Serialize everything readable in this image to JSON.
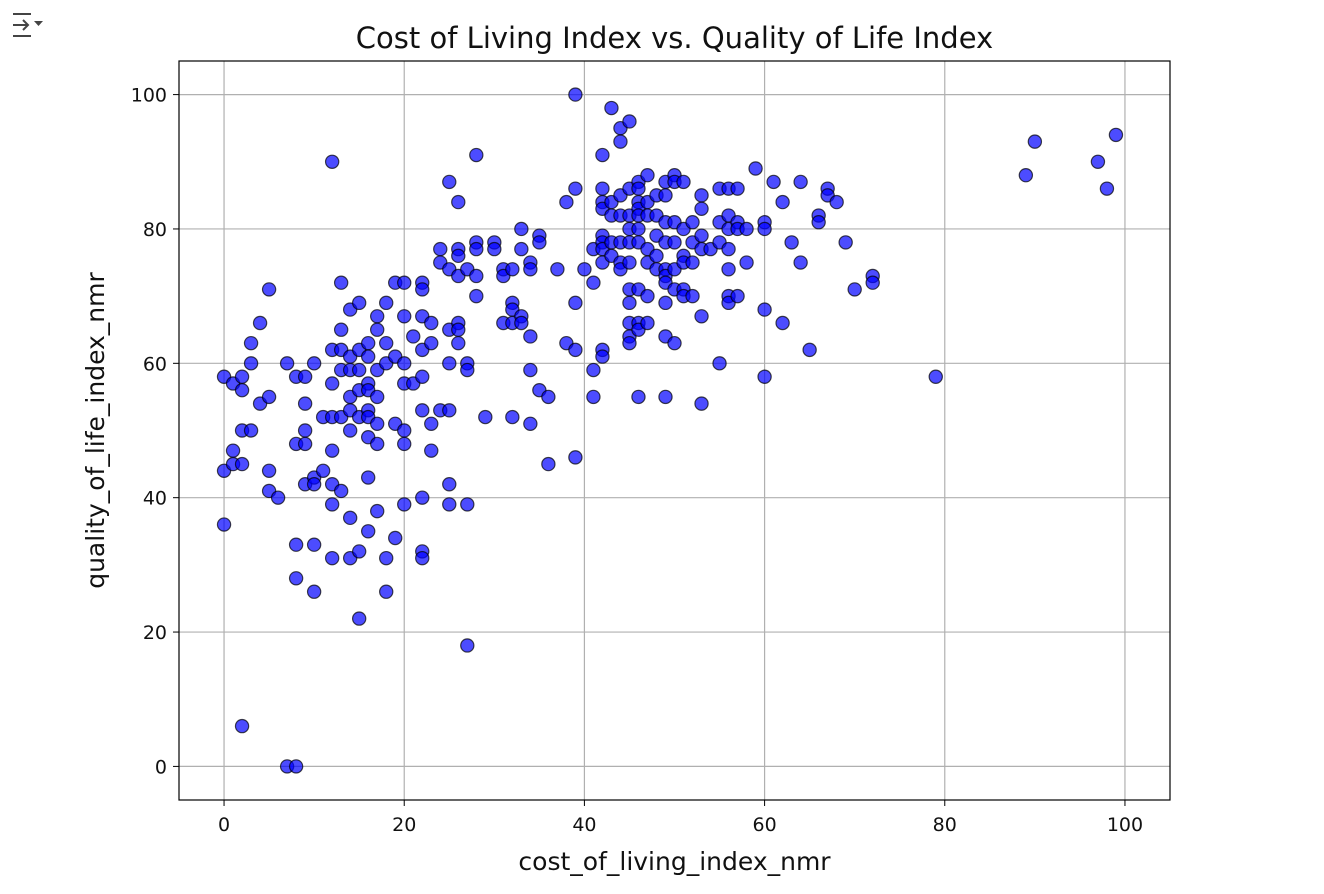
{
  "output_toggle": {
    "icon": "output-collapse-icon"
  },
  "chart_data": {
    "type": "scatter",
    "title": "Cost of Living Index vs. Quality of Life Index",
    "xlabel": "cost_of_living_index_nmr",
    "ylabel": "quality_of_life_index_nmr",
    "xlim": [
      -5,
      105
    ],
    "ylim": [
      -5,
      105
    ],
    "xticks": [
      0,
      20,
      40,
      60,
      80,
      100
    ],
    "yticks": [
      0,
      20,
      40,
      60,
      80,
      100
    ],
    "grid": true,
    "marker_color": "#0000ff",
    "marker_edge": "#000000",
    "points": [
      [
        0,
        58
      ],
      [
        0,
        44
      ],
      [
        0,
        36
      ],
      [
        1,
        57
      ],
      [
        1,
        47
      ],
      [
        1,
        45
      ],
      [
        2,
        58
      ],
      [
        2,
        56
      ],
      [
        2,
        50
      ],
      [
        2,
        45
      ],
      [
        2,
        6
      ],
      [
        3,
        63
      ],
      [
        3,
        60
      ],
      [
        3,
        50
      ],
      [
        4,
        66
      ],
      [
        4,
        54
      ],
      [
        5,
        71
      ],
      [
        5,
        55
      ],
      [
        5,
        44
      ],
      [
        5,
        41
      ],
      [
        6,
        40
      ],
      [
        7,
        60
      ],
      [
        7,
        0
      ],
      [
        8,
        58
      ],
      [
        8,
        48
      ],
      [
        8,
        33
      ],
      [
        8,
        28
      ],
      [
        8,
        0
      ],
      [
        9,
        58
      ],
      [
        9,
        54
      ],
      [
        9,
        50
      ],
      [
        9,
        48
      ],
      [
        9,
        42
      ],
      [
        10,
        60
      ],
      [
        10,
        43
      ],
      [
        10,
        42
      ],
      [
        10,
        33
      ],
      [
        10,
        26
      ],
      [
        11,
        52
      ],
      [
        11,
        44
      ],
      [
        12,
        90
      ],
      [
        12,
        62
      ],
      [
        12,
        57
      ],
      [
        12,
        52
      ],
      [
        12,
        47
      ],
      [
        12,
        42
      ],
      [
        12,
        39
      ],
      [
        12,
        31
      ],
      [
        13,
        72
      ],
      [
        13,
        65
      ],
      [
        13,
        62
      ],
      [
        13,
        59
      ],
      [
        13,
        52
      ],
      [
        13,
        41
      ],
      [
        14,
        68
      ],
      [
        14,
        61
      ],
      [
        14,
        59
      ],
      [
        14,
        55
      ],
      [
        14,
        53
      ],
      [
        14,
        50
      ],
      [
        14,
        37
      ],
      [
        14,
        31
      ],
      [
        15,
        69
      ],
      [
        15,
        62
      ],
      [
        15,
        59
      ],
      [
        15,
        56
      ],
      [
        15,
        52
      ],
      [
        15,
        32
      ],
      [
        15,
        22
      ],
      [
        16,
        63
      ],
      [
        16,
        61
      ],
      [
        16,
        57
      ],
      [
        16,
        56
      ],
      [
        16,
        53
      ],
      [
        16,
        52
      ],
      [
        16,
        49
      ],
      [
        16,
        43
      ],
      [
        16,
        35
      ],
      [
        17,
        67
      ],
      [
        17,
        65
      ],
      [
        17,
        59
      ],
      [
        17,
        55
      ],
      [
        17,
        51
      ],
      [
        17,
        48
      ],
      [
        17,
        38
      ],
      [
        18,
        69
      ],
      [
        18,
        63
      ],
      [
        18,
        60
      ],
      [
        18,
        31
      ],
      [
        18,
        26
      ],
      [
        19,
        72
      ],
      [
        19,
        61
      ],
      [
        19,
        51
      ],
      [
        19,
        34
      ],
      [
        20,
        72
      ],
      [
        20,
        67
      ],
      [
        20,
        60
      ],
      [
        20,
        57
      ],
      [
        20,
        50
      ],
      [
        20,
        48
      ],
      [
        20,
        39
      ],
      [
        21,
        64
      ],
      [
        21,
        57
      ],
      [
        22,
        72
      ],
      [
        22,
        71
      ],
      [
        22,
        67
      ],
      [
        22,
        62
      ],
      [
        22,
        58
      ],
      [
        22,
        53
      ],
      [
        22,
        40
      ],
      [
        22,
        32
      ],
      [
        22,
        31
      ],
      [
        23,
        66
      ],
      [
        23,
        63
      ],
      [
        23,
        51
      ],
      [
        23,
        47
      ],
      [
        24,
        77
      ],
      [
        24,
        75
      ],
      [
        24,
        53
      ],
      [
        25,
        87
      ],
      [
        25,
        74
      ],
      [
        25,
        65
      ],
      [
        25,
        60
      ],
      [
        25,
        53
      ],
      [
        25,
        42
      ],
      [
        25,
        39
      ],
      [
        26,
        84
      ],
      [
        26,
        77
      ],
      [
        26,
        76
      ],
      [
        26,
        73
      ],
      [
        26,
        66
      ],
      [
        26,
        65
      ],
      [
        26,
        63
      ],
      [
        27,
        74
      ],
      [
        27,
        60
      ],
      [
        27,
        59
      ],
      [
        27,
        39
      ],
      [
        27,
        18
      ],
      [
        28,
        91
      ],
      [
        28,
        78
      ],
      [
        28,
        77
      ],
      [
        28,
        73
      ],
      [
        28,
        70
      ],
      [
        29,
        52
      ],
      [
        30,
        78
      ],
      [
        30,
        77
      ],
      [
        31,
        74
      ],
      [
        31,
        73
      ],
      [
        31,
        66
      ],
      [
        32,
        74
      ],
      [
        32,
        69
      ],
      [
        32,
        68
      ],
      [
        32,
        66
      ],
      [
        32,
        52
      ],
      [
        33,
        80
      ],
      [
        33,
        77
      ],
      [
        33,
        67
      ],
      [
        33,
        66
      ],
      [
        34,
        75
      ],
      [
        34,
        74
      ],
      [
        34,
        64
      ],
      [
        34,
        59
      ],
      [
        34,
        51
      ],
      [
        35,
        79
      ],
      [
        35,
        78
      ],
      [
        35,
        56
      ],
      [
        36,
        55
      ],
      [
        36,
        45
      ],
      [
        37,
        74
      ],
      [
        38,
        84
      ],
      [
        38,
        63
      ],
      [
        39,
        100
      ],
      [
        39,
        86
      ],
      [
        39,
        69
      ],
      [
        39,
        62
      ],
      [
        39,
        46
      ],
      [
        40,
        74
      ],
      [
        41,
        77
      ],
      [
        41,
        72
      ],
      [
        41,
        59
      ],
      [
        41,
        55
      ],
      [
        42,
        91
      ],
      [
        42,
        86
      ],
      [
        42,
        84
      ],
      [
        42,
        83
      ],
      [
        42,
        79
      ],
      [
        42,
        78
      ],
      [
        42,
        77
      ],
      [
        42,
        75
      ],
      [
        42,
        62
      ],
      [
        42,
        61
      ],
      [
        43,
        98
      ],
      [
        43,
        84
      ],
      [
        43,
        82
      ],
      [
        43,
        78
      ],
      [
        43,
        76
      ],
      [
        44,
        95
      ],
      [
        44,
        93
      ],
      [
        44,
        85
      ],
      [
        44,
        82
      ],
      [
        44,
        78
      ],
      [
        44,
        75
      ],
      [
        44,
        74
      ],
      [
        45,
        96
      ],
      [
        45,
        86
      ],
      [
        45,
        82
      ],
      [
        45,
        80
      ],
      [
        45,
        78
      ],
      [
        45,
        75
      ],
      [
        45,
        71
      ],
      [
        45,
        69
      ],
      [
        45,
        66
      ],
      [
        45,
        64
      ],
      [
        45,
        63
      ],
      [
        46,
        87
      ],
      [
        46,
        86
      ],
      [
        46,
        84
      ],
      [
        46,
        83
      ],
      [
        46,
        82
      ],
      [
        46,
        80
      ],
      [
        46,
        78
      ],
      [
        46,
        71
      ],
      [
        46,
        66
      ],
      [
        46,
        65
      ],
      [
        46,
        55
      ],
      [
        47,
        88
      ],
      [
        47,
        84
      ],
      [
        47,
        82
      ],
      [
        47,
        77
      ],
      [
        47,
        75
      ],
      [
        47,
        70
      ],
      [
        47,
        66
      ],
      [
        48,
        85
      ],
      [
        48,
        82
      ],
      [
        48,
        79
      ],
      [
        48,
        76
      ],
      [
        48,
        74
      ],
      [
        49,
        87
      ],
      [
        49,
        85
      ],
      [
        49,
        81
      ],
      [
        49,
        78
      ],
      [
        49,
        74
      ],
      [
        49,
        73
      ],
      [
        49,
        72
      ],
      [
        49,
        69
      ],
      [
        49,
        64
      ],
      [
        49,
        55
      ],
      [
        50,
        88
      ],
      [
        50,
        87
      ],
      [
        50,
        81
      ],
      [
        50,
        78
      ],
      [
        50,
        74
      ],
      [
        50,
        71
      ],
      [
        50,
        63
      ],
      [
        51,
        87
      ],
      [
        51,
        80
      ],
      [
        51,
        76
      ],
      [
        51,
        75
      ],
      [
        51,
        71
      ],
      [
        51,
        70
      ],
      [
        52,
        81
      ],
      [
        52,
        78
      ],
      [
        52,
        75
      ],
      [
        52,
        70
      ],
      [
        53,
        85
      ],
      [
        53,
        83
      ],
      [
        53,
        79
      ],
      [
        53,
        77
      ],
      [
        53,
        67
      ],
      [
        53,
        54
      ],
      [
        54,
        77
      ],
      [
        55,
        86
      ],
      [
        55,
        81
      ],
      [
        55,
        78
      ],
      [
        55,
        60
      ],
      [
        56,
        86
      ],
      [
        56,
        82
      ],
      [
        56,
        80
      ],
      [
        56,
        77
      ],
      [
        56,
        74
      ],
      [
        56,
        70
      ],
      [
        56,
        69
      ],
      [
        57,
        86
      ],
      [
        57,
        81
      ],
      [
        57,
        80
      ],
      [
        57,
        70
      ],
      [
        58,
        80
      ],
      [
        58,
        75
      ],
      [
        59,
        89
      ],
      [
        60,
        81
      ],
      [
        60,
        80
      ],
      [
        60,
        68
      ],
      [
        60,
        58
      ],
      [
        61,
        87
      ],
      [
        62,
        84
      ],
      [
        62,
        66
      ],
      [
        63,
        78
      ],
      [
        64,
        87
      ],
      [
        64,
        75
      ],
      [
        65,
        62
      ],
      [
        66,
        82
      ],
      [
        66,
        81
      ],
      [
        67,
        86
      ],
      [
        67,
        85
      ],
      [
        68,
        84
      ],
      [
        69,
        78
      ],
      [
        70,
        71
      ],
      [
        72,
        73
      ],
      [
        72,
        72
      ],
      [
        79,
        58
      ],
      [
        89,
        88
      ],
      [
        90,
        93
      ],
      [
        97,
        90
      ],
      [
        98,
        86
      ],
      [
        99,
        94
      ]
    ]
  }
}
